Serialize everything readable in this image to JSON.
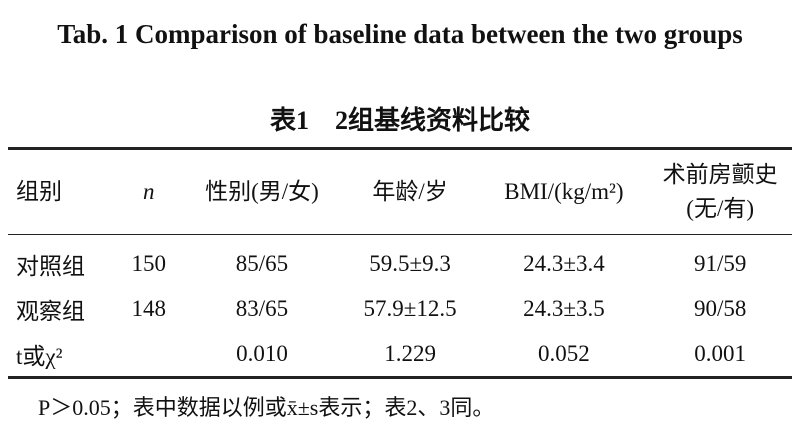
{
  "header": {
    "title": "Tab. 1    Comparison of baseline data between the two groups",
    "title_zh": "表1　2组基线资料比较"
  },
  "table": {
    "columns": [
      "组别",
      "n",
      "性别(男/女)",
      "年龄/岁",
      "BMI/(kg/m²)",
      "术前房颤史(无/有)"
    ],
    "rows": [
      [
        "对照组",
        "150",
        "85/65",
        "59.5±9.3",
        "24.3±3.4",
        "91/59"
      ],
      [
        "观察组",
        "148",
        "83/65",
        "57.9±12.5",
        "24.3±3.5",
        "90/58"
      ],
      [
        "t或χ²",
        "",
        "0.010",
        "1.229",
        "0.052",
        "0.001"
      ]
    ]
  },
  "footnote": "P＞0.05；表中数据以例或x̄±s表示；表2、3同。"
}
